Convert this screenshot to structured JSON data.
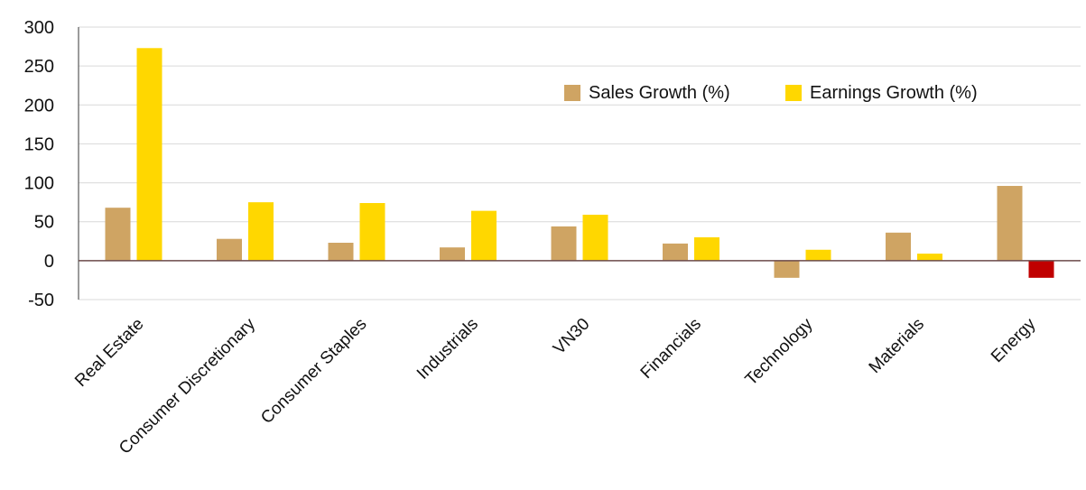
{
  "chart_data": {
    "type": "bar",
    "categories": [
      "Real Estate",
      "Consumer Discretionary",
      "Consumer Staples",
      "Industrials",
      "VN30",
      "Financials",
      "Technology",
      "Materials",
      "Energy"
    ],
    "series": [
      {
        "name": "Sales Growth (%)",
        "values": [
          68,
          28,
          23,
          17,
          44,
          22,
          -22,
          36,
          96
        ],
        "color": "#cfa463"
      },
      {
        "name": "Earnings Growth (%)",
        "values": [
          273,
          75,
          74,
          64,
          59,
          30,
          14,
          9,
          -22
        ],
        "color": "#ffd700"
      }
    ],
    "negative_highlight_color": "#c00000",
    "ylim": [
      -50,
      300
    ],
    "yticks": [
      "300",
      "250",
      "200",
      "150",
      "100",
      "50",
      "0",
      "-50"
    ],
    "ytick_values": [
      300,
      250,
      200,
      150,
      100,
      50,
      0,
      -50
    ],
    "grid": true,
    "legend_position": "top-right",
    "title": "",
    "xlabel": "",
    "ylabel": ""
  }
}
